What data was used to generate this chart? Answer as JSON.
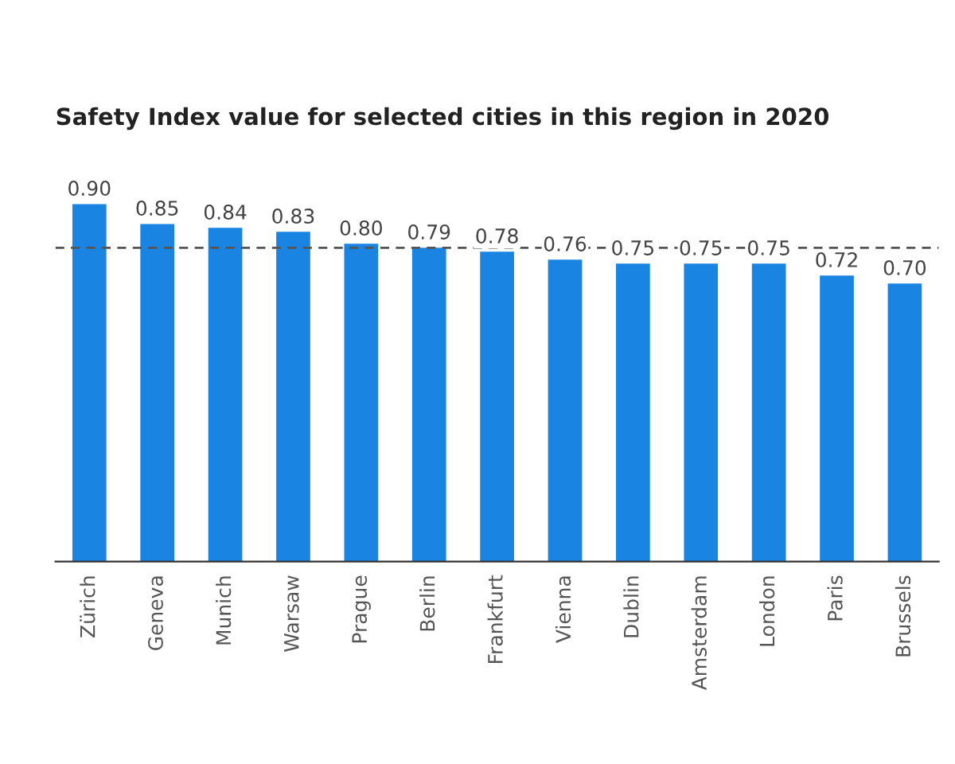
{
  "chart_data": {
    "type": "bar",
    "title": "Safety Index value for selected cities in this region in 2020",
    "categories": [
      "Zürich",
      "Geneva",
      "Munich",
      "Warsaw",
      "Prague",
      "Berlin",
      "Frankfurt",
      "Vienna",
      "Dublin",
      "Amsterdam",
      "London",
      "Paris",
      "Brussels"
    ],
    "values": [
      0.9,
      0.85,
      0.84,
      0.83,
      0.8,
      0.79,
      0.78,
      0.76,
      0.75,
      0.75,
      0.75,
      0.72,
      0.7
    ],
    "color": "#1a84e3",
    "data_labels": true,
    "value_labels": [
      "0.90",
      "0.85",
      "0.84",
      "0.83",
      "0.80",
      "0.79",
      "0.78",
      "0.76",
      "0.75",
      "0.75",
      "0.75",
      "0.72",
      "0.70"
    ],
    "ref_lines": [
      {
        "axis": "y",
        "value": 0.79,
        "color": "#555555",
        "line_style": "dashed"
      }
    ],
    "grid": false,
    "legend": false,
    "tick_labels": "x"
  }
}
